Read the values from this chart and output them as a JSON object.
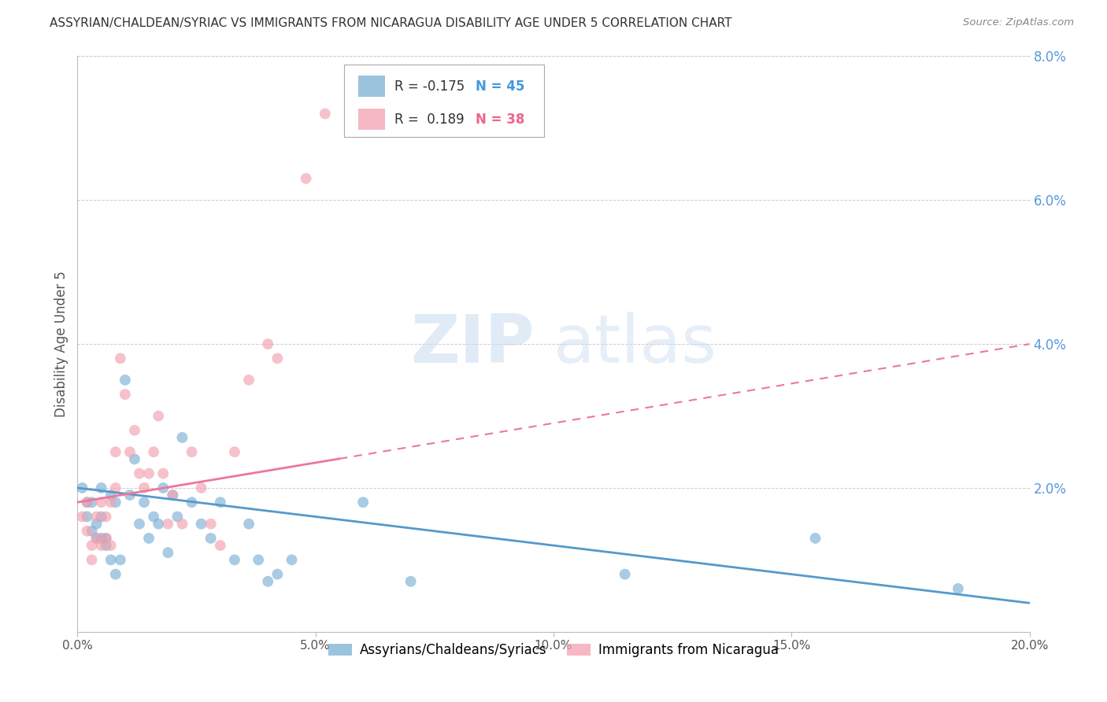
{
  "title": "ASSYRIAN/CHALDEAN/SYRIAC VS IMMIGRANTS FROM NICARAGUA DISABILITY AGE UNDER 5 CORRELATION CHART",
  "source": "Source: ZipAtlas.com",
  "ylabel": "Disability Age Under 5",
  "legend_label_blue": "Assyrians/Chaldeans/Syriacs",
  "legend_label_pink": "Immigrants from Nicaragua",
  "R_blue": -0.175,
  "N_blue": 45,
  "R_pink": 0.189,
  "N_pink": 38,
  "color_blue": "#7BAFD4",
  "color_pink": "#F4A0B0",
  "color_blue_line": "#5599CC",
  "color_pink_line": "#EE7799",
  "color_blue_text": "#4499DD",
  "color_pink_text": "#EE6688",
  "xlim": [
    0.0,
    0.2
  ],
  "ylim": [
    0.0,
    0.08
  ],
  "xticks": [
    0.0,
    0.05,
    0.1,
    0.15,
    0.2
  ],
  "yticks_right": [
    0.02,
    0.04,
    0.06,
    0.08
  ],
  "blue_scatter_x": [
    0.001,
    0.002,
    0.002,
    0.003,
    0.003,
    0.004,
    0.004,
    0.005,
    0.005,
    0.005,
    0.006,
    0.006,
    0.007,
    0.007,
    0.008,
    0.008,
    0.009,
    0.01,
    0.011,
    0.012,
    0.013,
    0.014,
    0.015,
    0.016,
    0.017,
    0.018,
    0.019,
    0.02,
    0.021,
    0.022,
    0.024,
    0.026,
    0.028,
    0.03,
    0.033,
    0.036,
    0.038,
    0.04,
    0.042,
    0.045,
    0.06,
    0.07,
    0.115,
    0.155,
    0.185
  ],
  "blue_scatter_y": [
    0.02,
    0.018,
    0.016,
    0.018,
    0.014,
    0.015,
    0.013,
    0.016,
    0.013,
    0.02,
    0.013,
    0.012,
    0.01,
    0.019,
    0.008,
    0.018,
    0.01,
    0.035,
    0.019,
    0.024,
    0.015,
    0.018,
    0.013,
    0.016,
    0.015,
    0.02,
    0.011,
    0.019,
    0.016,
    0.027,
    0.018,
    0.015,
    0.013,
    0.018,
    0.01,
    0.015,
    0.01,
    0.007,
    0.008,
    0.01,
    0.018,
    0.007,
    0.008,
    0.013,
    0.006
  ],
  "pink_scatter_x": [
    0.001,
    0.002,
    0.002,
    0.003,
    0.003,
    0.004,
    0.004,
    0.005,
    0.005,
    0.006,
    0.006,
    0.007,
    0.007,
    0.008,
    0.008,
    0.009,
    0.01,
    0.011,
    0.012,
    0.013,
    0.014,
    0.015,
    0.016,
    0.017,
    0.018,
    0.019,
    0.02,
    0.022,
    0.024,
    0.026,
    0.028,
    0.03,
    0.033,
    0.036,
    0.04,
    0.042,
    0.048,
    0.052
  ],
  "pink_scatter_y": [
    0.016,
    0.014,
    0.018,
    0.012,
    0.01,
    0.016,
    0.013,
    0.012,
    0.018,
    0.013,
    0.016,
    0.012,
    0.018,
    0.02,
    0.025,
    0.038,
    0.033,
    0.025,
    0.028,
    0.022,
    0.02,
    0.022,
    0.025,
    0.03,
    0.022,
    0.015,
    0.019,
    0.015,
    0.025,
    0.02,
    0.015,
    0.012,
    0.025,
    0.035,
    0.04,
    0.038,
    0.063,
    0.072
  ],
  "watermark_zip": "ZIP",
  "watermark_atlas": "atlas",
  "background_color": "#FFFFFF",
  "grid_color": "#CCCCCC"
}
